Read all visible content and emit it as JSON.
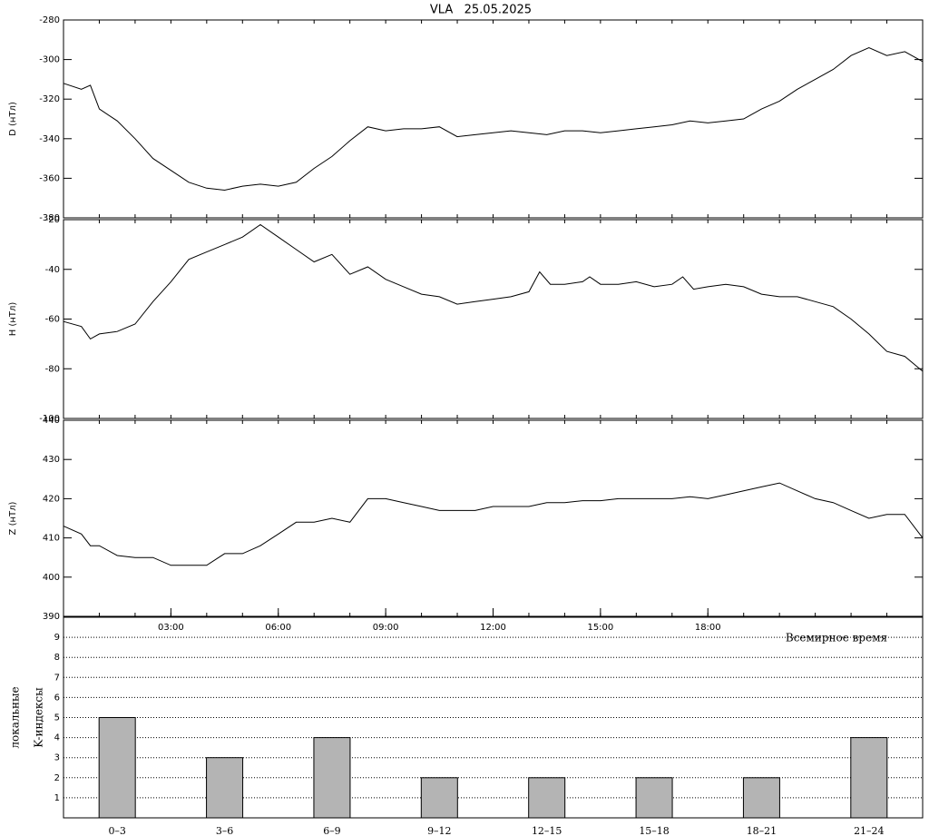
{
  "title": "VLA   25.05.2025",
  "annotation": "Всемирное время",
  "chart_data": [
    {
      "type": "line",
      "ylabel": "D (нТл)",
      "color": "#000000",
      "xlim": [
        0,
        24
      ],
      "ylim": [
        -380,
        -280
      ],
      "yticks": [
        -380,
        -360,
        -340,
        -320,
        -300,
        -280
      ],
      "x": [
        0,
        0.5,
        0.75,
        1,
        1.5,
        2,
        2.5,
        3,
        3.5,
        4,
        4.5,
        5,
        5.5,
        6,
        6.5,
        7,
        7.5,
        8,
        8.5,
        9,
        9.5,
        10,
        10.5,
        11,
        11.5,
        12,
        12.5,
        13,
        13.5,
        14,
        14.5,
        15,
        15.5,
        16,
        16.5,
        17,
        17.5,
        18,
        18.5,
        19,
        19.5,
        20,
        20.5,
        21,
        21.5,
        22,
        22.5,
        23,
        23.5,
        24
      ],
      "values": [
        -312,
        -315,
        -313,
        -325,
        -331,
        -340,
        -350,
        -356,
        -362,
        -365,
        -366,
        -364,
        -363,
        -364,
        -362,
        -355,
        -349,
        -341,
        -334,
        -336,
        -335,
        -335,
        -334,
        -339,
        -338,
        -337,
        -336,
        -337,
        -338,
        -336,
        -336,
        -337,
        -336,
        -335,
        -334,
        -333,
        -331,
        -332,
        -331,
        -330,
        -325,
        -321,
        -315,
        -310,
        -305,
        -298,
        -294,
        -298,
        -296,
        -301
      ]
    },
    {
      "type": "line",
      "ylabel": "H (нТл)",
      "color": "#000000",
      "xlim": [
        0,
        24
      ],
      "ylim": [
        -100,
        -20
      ],
      "yticks": [
        -100,
        -80,
        -60,
        -40,
        -20
      ],
      "x": [
        0,
        0.5,
        0.75,
        1,
        1.5,
        2,
        2.5,
        3,
        3.5,
        4,
        4.5,
        5,
        5.5,
        6,
        6.5,
        7,
        7.5,
        8,
        8.5,
        9,
        9.5,
        10,
        10.5,
        11,
        11.5,
        12,
        12.5,
        13,
        13.3,
        13.6,
        14,
        14.5,
        14.7,
        15,
        15.5,
        16,
        16.5,
        17,
        17.3,
        17.6,
        18,
        18.5,
        19,
        19.5,
        20,
        20.5,
        21,
        21.5,
        22,
        22.5,
        23,
        23.5,
        24
      ],
      "values": [
        -61,
        -63,
        -68,
        -66,
        -65,
        -62,
        -53,
        -45,
        -36,
        -33,
        -30,
        -27,
        -22,
        -27,
        -32,
        -37,
        -34,
        -42,
        -39,
        -44,
        -47,
        -50,
        -51,
        -54,
        -53,
        -52,
        -51,
        -49,
        -41,
        -46,
        -46,
        -45,
        -43,
        -46,
        -46,
        -45,
        -47,
        -46,
        -43,
        -48,
        -47,
        -46,
        -47,
        -50,
        -51,
        -51,
        -53,
        -55,
        -60,
        -66,
        -73,
        -75,
        -81
      ]
    },
    {
      "type": "line",
      "ylabel": "Z (нТл)",
      "color": "#000000",
      "xlim": [
        0,
        24
      ],
      "ylim": [
        390,
        440
      ],
      "yticks": [
        390,
        400,
        410,
        420,
        430,
        440
      ],
      "xticks": [
        {
          "value": 3,
          "label": "03:00"
        },
        {
          "value": 6,
          "label": "06:00"
        },
        {
          "value": 9,
          "label": "09:00"
        },
        {
          "value": 12,
          "label": "12:00"
        },
        {
          "value": 15,
          "label": "15:00"
        },
        {
          "value": 18,
          "label": "18:00"
        }
      ],
      "x": [
        0,
        0.5,
        0.75,
        1,
        1.5,
        2,
        2.5,
        3,
        3.5,
        4,
        4.5,
        5,
        5.5,
        6,
        6.5,
        7,
        7.5,
        8,
        8.5,
        9,
        9.5,
        10,
        10.5,
        11,
        11.5,
        12,
        12.5,
        13,
        13.5,
        14,
        14.5,
        15,
        15.5,
        16,
        16.5,
        17,
        17.5,
        18,
        18.5,
        19,
        19.5,
        20,
        20.5,
        21,
        21.5,
        22,
        22.5,
        23,
        23.5,
        24
      ],
      "values": [
        413,
        411,
        408,
        408,
        405.5,
        405,
        405,
        403,
        403,
        403,
        406,
        406,
        408,
        411,
        414,
        414,
        415,
        414,
        420,
        420,
        419,
        418,
        417,
        417,
        417,
        418,
        418,
        418,
        419,
        419,
        419.5,
        419.5,
        420,
        420,
        420,
        420,
        420.5,
        420,
        421,
        422,
        423,
        424,
        422,
        420,
        419,
        417,
        415,
        416,
        416,
        410
      ]
    },
    {
      "type": "bar",
      "ylabel": [
        "локальные",
        "K-индексы"
      ],
      "color": "#b4b4b4",
      "categories": [
        "0–3",
        "3–6",
        "6–9",
        "9–12",
        "12–15",
        "15–18",
        "18–21",
        "21–24"
      ],
      "values": [
        5,
        3,
        4,
        2,
        2,
        2,
        2,
        4
      ],
      "ylim": [
        0,
        10
      ],
      "yticks": [
        1,
        2,
        3,
        4,
        5,
        6,
        7,
        8,
        9
      ],
      "grid": true
    }
  ]
}
